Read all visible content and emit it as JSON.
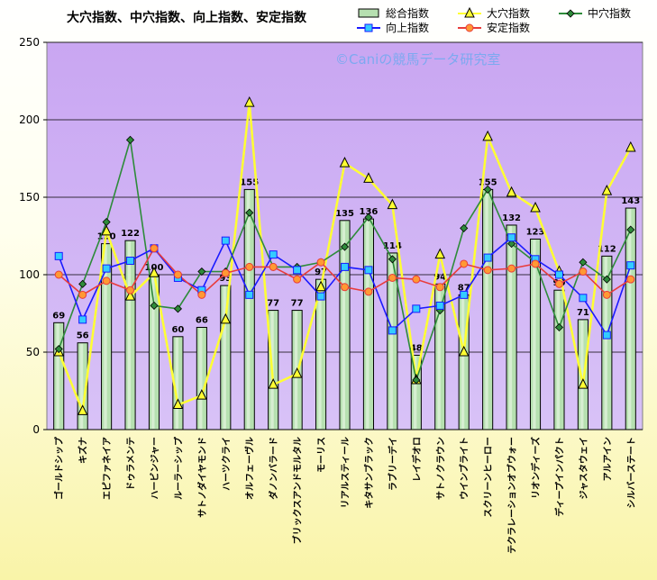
{
  "chart_data": {
    "type": "bar",
    "title": "大穴指数、中穴指数、向上指数、安定指数",
    "watermark": "©Caniの競馬データ研究室",
    "ylim": [
      0,
      250
    ],
    "yticks": [
      0,
      50,
      100,
      150,
      200,
      250
    ],
    "grid": true,
    "legend_position": "top-right",
    "categories": [
      "ゴールドシップ",
      "キズナ",
      "エピファネイア",
      "ドゥラメンテ",
      "ハービンジャー",
      "ルーラーシップ",
      "サトノダイヤモンド",
      "ハーツクライ",
      "オルフェーヴル",
      "ダノンバラード",
      "ブリックスアンドモルタル",
      "モーリス",
      "リアルスティール",
      "キタサンブラック",
      "ラブリーデイ",
      "レイデオロ",
      "サトノクラウン",
      "ウインブライト",
      "スクリーンヒーロー",
      "テクラレーションオブウォー",
      "リオンディーズ",
      "ディープインパクト",
      "ジャスタウェイ",
      "アルアイン",
      "シルバーステート"
    ],
    "series": [
      {
        "name": "総合指数",
        "kind": "bar",
        "color": "#b6e0b0",
        "values": [
          69,
          56,
          120,
          122,
          100,
          60,
          66,
          93,
          155,
          77,
          77,
          97,
          135,
          136,
          114,
          48,
          94,
          87,
          155,
          132,
          123,
          90,
          71,
          112,
          143
        ]
      },
      {
        "name": "大穴指数",
        "kind": "line",
        "color": "#ffff33",
        "marker": "triangle",
        "values": [
          50,
          12,
          128,
          86,
          101,
          16,
          22,
          71,
          211,
          29,
          36,
          92,
          172,
          162,
          145,
          32,
          113,
          50,
          189,
          153,
          143,
          102,
          29,
          154,
          182
        ]
      },
      {
        "name": "中穴指数",
        "kind": "line",
        "color": "#2e8b3a",
        "marker": "diamond",
        "values": [
          52,
          94,
          134,
          187,
          80,
          78,
          102,
          102,
          140,
          105,
          105,
          108,
          118,
          137,
          110,
          32,
          77,
          130,
          155,
          120,
          108,
          66,
          108,
          97,
          129
        ]
      },
      {
        "name": "向上指数",
        "kind": "line",
        "color": "#1a1aff",
        "marker": "square",
        "values": [
          112,
          71,
          104,
          109,
          117,
          98,
          90,
          122,
          87,
          113,
          103,
          86,
          105,
          103,
          64,
          78,
          80,
          87,
          111,
          124,
          110,
          100,
          85,
          61,
          106
        ]
      },
      {
        "name": "安定指数",
        "kind": "line",
        "color": "#e83c3c",
        "marker": "circle",
        "values": [
          100,
          87,
          96,
          90,
          117,
          100,
          87,
          101,
          105,
          105,
          97,
          108,
          92,
          89,
          98,
          97,
          92,
          107,
          103,
          104,
          107,
          94,
          102,
          87,
          97
        ]
      }
    ]
  }
}
